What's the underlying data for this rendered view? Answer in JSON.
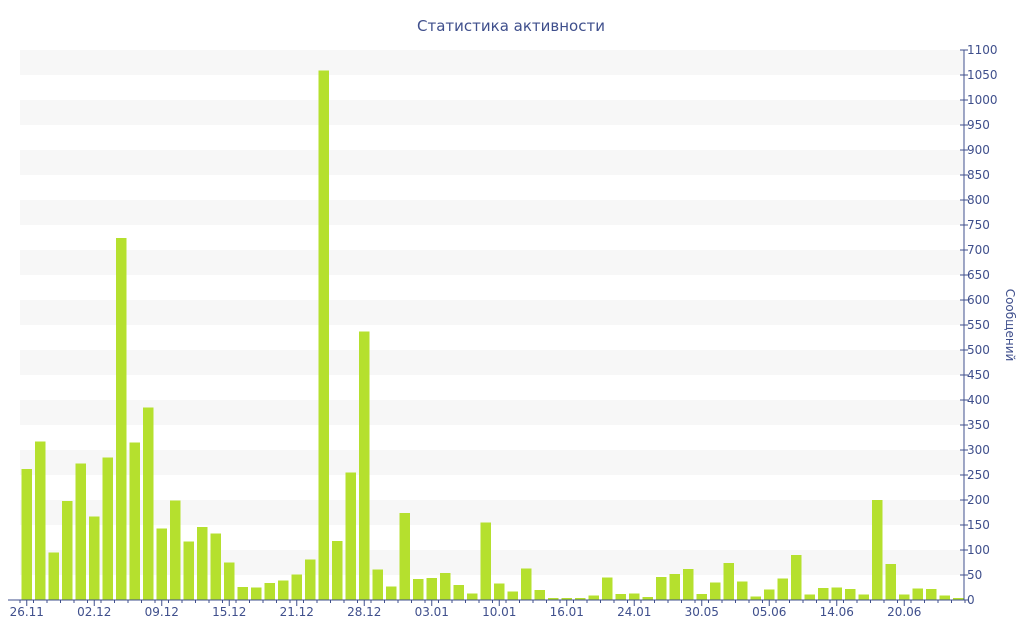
{
  "chart_data": {
    "type": "bar",
    "title": "Статистика активности",
    "xlabel": "",
    "ylabel": "Сообщений",
    "ylim": [
      0,
      1100
    ],
    "ytick_step": 50,
    "y_axis_position": "right",
    "grid": "alternating horizontal bands",
    "legend": "none",
    "colors": {
      "bar": "#b5e02e",
      "band": "#f7f7f7",
      "axis": "#3f4f8c",
      "text": "#3f4f8c"
    },
    "x_tick_labels": [
      {
        "index": 0,
        "label": "26.11"
      },
      {
        "index": 5,
        "label": "02.12"
      },
      {
        "index": 10,
        "label": "09.12"
      },
      {
        "index": 15,
        "label": "15.12"
      },
      {
        "index": 20,
        "label": "21.12"
      },
      {
        "index": 25,
        "label": "28.12"
      },
      {
        "index": 30,
        "label": "03.01"
      },
      {
        "index": 35,
        "label": "10.01"
      },
      {
        "index": 40,
        "label": "16.01"
      },
      {
        "index": 45,
        "label": "24.01"
      },
      {
        "index": 50,
        "label": "30.05"
      },
      {
        "index": 55,
        "label": "05.06"
      },
      {
        "index": 60,
        "label": "14.06"
      },
      {
        "index": 65,
        "label": "20.06"
      }
    ],
    "values": [
      262,
      317,
      95,
      198,
      273,
      167,
      285,
      724,
      315,
      385,
      143,
      199,
      117,
      146,
      133,
      75,
      26,
      25,
      34,
      39,
      51,
      81,
      1059,
      118,
      255,
      537,
      61,
      27,
      174,
      42,
      44,
      54,
      30,
      13,
      155,
      33,
      17,
      63,
      20,
      4,
      4,
      4,
      9,
      45,
      12,
      13,
      6,
      46,
      52,
      62,
      12,
      35,
      74,
      37,
      7,
      21,
      43,
      90,
      11,
      24,
      25,
      22,
      11,
      200,
      72,
      11,
      23,
      22,
      9,
      4
    ]
  }
}
